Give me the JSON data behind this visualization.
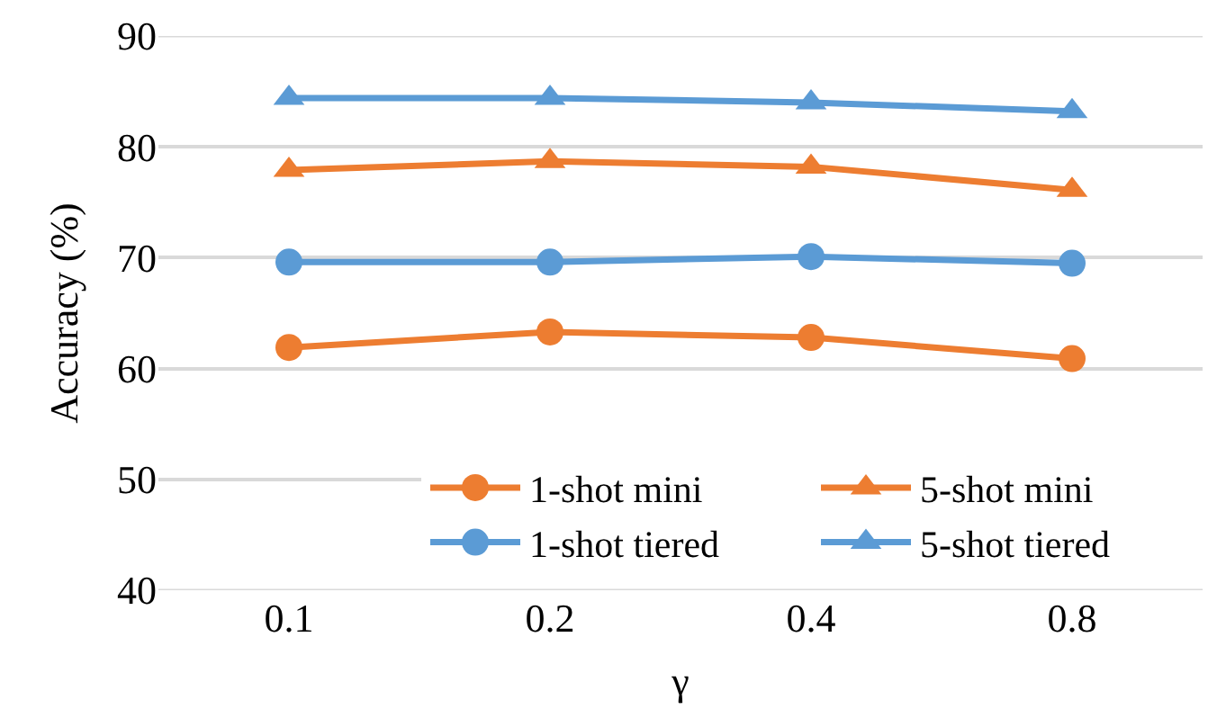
{
  "chart_data": {
    "type": "line",
    "xlabel": "γ",
    "ylabel": "Accuracy (%)",
    "categories": [
      "0.1",
      "0.2",
      "0.4",
      "0.8"
    ],
    "ylim": [
      40,
      90
    ],
    "yticks": [
      40,
      50,
      60,
      70,
      80,
      90
    ],
    "grid": "y",
    "legend": "bottom right",
    "line_style": "solid",
    "series": [
      {
        "name": "1-shot mini",
        "color": "#ed7d31",
        "marker": "circle",
        "values": [
          61.9,
          63.3,
          62.8,
          60.9
        ]
      },
      {
        "name": "5-shot mini",
        "color": "#ed7d31",
        "marker": "triangle",
        "values": [
          77.9,
          78.7,
          78.2,
          76.1
        ]
      },
      {
        "name": "1-shot tiered",
        "color": "#5b9bd5",
        "marker": "circle",
        "values": [
          69.6,
          69.6,
          70.1,
          69.5
        ]
      },
      {
        "name": "5-shot tiered",
        "color": "#5b9bd5",
        "marker": "triangle",
        "values": [
          84.4,
          84.4,
          84.0,
          83.2
        ]
      }
    ]
  }
}
